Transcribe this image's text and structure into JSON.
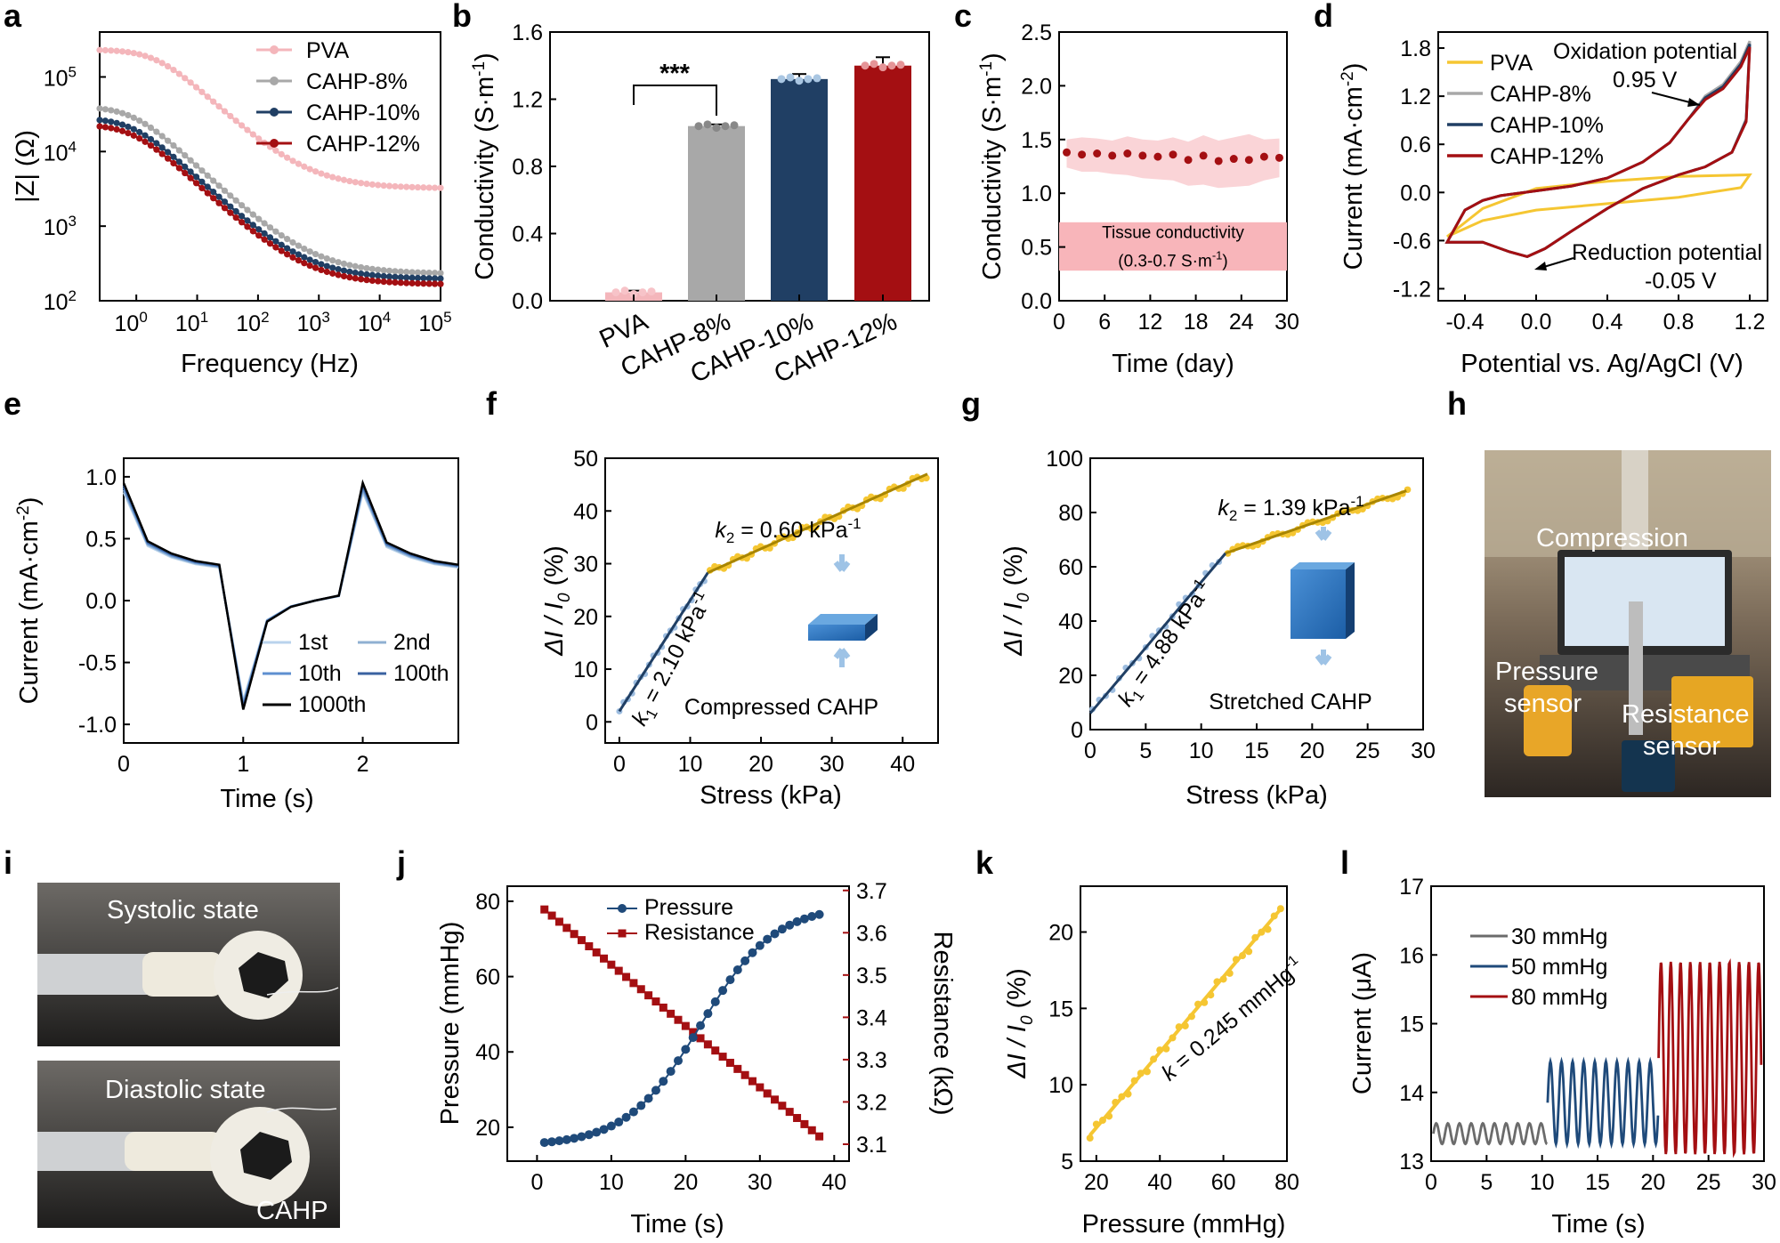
{
  "panels": {
    "a": "a",
    "b": "b",
    "c": "c",
    "d": "d",
    "e": "e",
    "f": "f",
    "g": "g",
    "h": "h",
    "i": "i",
    "j": "j",
    "k": "k",
    "l": "l"
  },
  "colors": {
    "pva": "#f4b6bb",
    "c8": "#a8a8a8",
    "c10": "#203f64",
    "c12": "#a40f12",
    "gold": "#f5c632",
    "goldText": "#a88500",
    "blueLine": "#203f64"
  },
  "chart_data": [
    {
      "id": "a",
      "type": "line",
      "title": "",
      "xlabel": "Frequency (Hz)",
      "ylabel": "|Z| (Ω)",
      "xscale": "log",
      "yscale": "log",
      "xlim": [
        0.25,
        100000
      ],
      "ylim": [
        100,
        400000
      ],
      "xticks": [
        {
          "v": 1,
          "l": "10",
          "e": "0"
        },
        {
          "v": 10,
          "l": "10",
          "e": "1"
        },
        {
          "v": 100,
          "l": "10",
          "e": "2"
        },
        {
          "v": 1000,
          "l": "10",
          "e": "3"
        },
        {
          "v": 10000,
          "l": "10",
          "e": "4"
        },
        {
          "v": 100000,
          "l": "10",
          "e": "5"
        }
      ],
      "yticks": [
        {
          "v": 100,
          "l": "10",
          "e": "2"
        },
        {
          "v": 1000,
          "l": "10",
          "e": "3"
        },
        {
          "v": 10000,
          "l": "10",
          "e": "4"
        },
        {
          "v": 100000,
          "l": "10",
          "e": "5"
        }
      ],
      "legend": [
        "PVA",
        "CAHP-8%",
        "CAHP-10%",
        "CAHP-12%"
      ],
      "series": [
        {
          "name": "PVA",
          "z0": 230000,
          "zinf": 3200,
          "fc": 2.2
        },
        {
          "name": "CAHP-8%",
          "z0": 40000,
          "zinf": 230,
          "fc": 0.9
        },
        {
          "name": "CAHP-10%",
          "z0": 28000,
          "zinf": 195,
          "fc": 0.9
        },
        {
          "name": "CAHP-12%",
          "z0": 23000,
          "zinf": 165,
          "fc": 0.9
        }
      ]
    },
    {
      "id": "b",
      "type": "bar",
      "title": "",
      "ylabel": "Conductivity (S·m",
      "ylabel_sup": "-1",
      "ylabel_end": ")",
      "categories": [
        "PVA",
        "CAHP-8%",
        "CAHP-10%",
        "CAHP-12%"
      ],
      "values": [
        0.05,
        1.04,
        1.32,
        1.4
      ],
      "errors": [
        0.01,
        0.01,
        0.03,
        0.05
      ],
      "ylim": [
        0,
        1.6
      ],
      "yticks": [
        "0.0",
        "0.4",
        "0.8",
        "1.2",
        "1.6"
      ],
      "annotation": "***"
    },
    {
      "id": "c",
      "type": "scatter",
      "title": "",
      "xlabel": "Time (day)",
      "ylabel": "Conductivity (S·m",
      "ylabel_sup": "-1",
      "ylabel_end": ")",
      "x": [
        1,
        3,
        5,
        7,
        9,
        11,
        13,
        15,
        17,
        19,
        21,
        23,
        25,
        27,
        29
      ],
      "y": [
        1.38,
        1.36,
        1.37,
        1.35,
        1.37,
        1.35,
        1.34,
        1.36,
        1.31,
        1.35,
        1.3,
        1.32,
        1.31,
        1.34,
        1.33
      ],
      "band_upper": [
        1.5,
        1.52,
        1.51,
        1.49,
        1.53,
        1.5,
        1.49,
        1.52,
        1.48,
        1.54,
        1.49,
        1.52,
        1.55,
        1.5,
        1.51
      ],
      "band_lower": [
        1.24,
        1.2,
        1.2,
        1.18,
        1.17,
        1.14,
        1.13,
        1.12,
        1.07,
        1.08,
        1.05,
        1.06,
        1.07,
        1.12,
        1.15
      ],
      "xlim": [
        0,
        30
      ],
      "ylim": [
        0,
        2.5
      ],
      "xticks": [
        "0",
        "6",
        "12",
        "18",
        "24",
        "30"
      ],
      "yticks": [
        "0.0",
        "0.5",
        "1.0",
        "1.5",
        "2.0",
        "2.5"
      ],
      "tissue_band": [
        0.28,
        0.73
      ],
      "tissue_label": "Tissue conductivity",
      "tissue_range_pre": "(0.3-0.7 S·m",
      "tissue_range_sup": "-1",
      "tissue_range_end": ")"
    },
    {
      "id": "d",
      "type": "line",
      "title": "",
      "xlabel": "Potential vs. Ag/AgCl (V)",
      "ylabel": "Current (mA·cm",
      "ylabel_sup": "-2",
      "ylabel_end": ")",
      "xlim": [
        -0.55,
        1.3
      ],
      "ylim": [
        -1.35,
        2.0
      ],
      "xticks": [
        "-0.4",
        "0.0",
        "0.4",
        "0.8",
        "1.2"
      ],
      "yticks": [
        "-1.2",
        "-0.6",
        "0.0",
        "0.6",
        "1.2",
        "1.8"
      ],
      "legend": [
        "PVA",
        "CAHP-8%",
        "CAHP-10%",
        "CAHP-12%"
      ],
      "ann_ox": "Oxidation potential",
      "ann_ox_v": "0.95 V",
      "ann_red": "Reduction potential",
      "ann_red_v": "-0.05 V"
    },
    {
      "id": "e",
      "type": "line",
      "title": "",
      "xlabel": "Time (s)",
      "ylabel": "Current (mA·cm",
      "ylabel_sup": "-2",
      "ylabel_end": ")",
      "xlim": [
        0,
        2.8
      ],
      "ylim": [
        -1.15,
        1.15
      ],
      "xticks": [
        "0",
        "1",
        "2"
      ],
      "yticks": [
        "-1.0",
        "-0.5",
        "0.0",
        "0.5",
        "1.0"
      ],
      "t": [
        0,
        0.2,
        0.4,
        0.6,
        0.8,
        1.0,
        1.2,
        1.4,
        1.6,
        1.8,
        2.0,
        2.2,
        2.4,
        2.6,
        2.8
      ],
      "i": [
        0.95,
        0.48,
        0.38,
        0.32,
        0.29,
        -0.88,
        -0.17,
        -0.05,
        0.0,
        0.04,
        0.95,
        0.47,
        0.38,
        0.32,
        0.29
      ],
      "legend": [
        "1st",
        "2nd",
        "10th",
        "100th",
        "1000th"
      ]
    },
    {
      "id": "f",
      "type": "scatter",
      "title": "",
      "xlabel": "Stress (kPa)",
      "ylabel": "ΔI / I",
      "ylabel_sub": "0",
      "ylabel_end": " (%)",
      "xlim": [
        -2,
        45
      ],
      "ylim": [
        -4,
        50
      ],
      "xticks": [
        "0",
        "10",
        "20",
        "30",
        "40"
      ],
      "yticks": [
        "0",
        "10",
        "20",
        "30",
        "40",
        "50"
      ],
      "k1": "2.10",
      "k2": "0.60",
      "k_unit": "kPa",
      "k_sup": "-1",
      "fit1": [
        [
          0,
          2.0
        ],
        [
          12.5,
          28.3
        ]
      ],
      "fit2": [
        [
          12.5,
          28.3
        ],
        [
          43.5,
          47.0
        ]
      ],
      "inset": "Compressed CAHP"
    },
    {
      "id": "g",
      "type": "scatter",
      "title": "",
      "xlabel": "Stress (kPa)",
      "ylabel": "ΔI / I",
      "ylabel_sub": "0",
      "ylabel_end": " (%)",
      "xlim": [
        0,
        30
      ],
      "ylim": [
        0,
        100
      ],
      "xticks": [
        "0",
        "5",
        "10",
        "15",
        "20",
        "25",
        "30"
      ],
      "yticks": [
        "0",
        "20",
        "40",
        "60",
        "80",
        "100"
      ],
      "k1": "4.88",
      "k2": "1.39",
      "k_unit": "kPa",
      "k_sup": "-1",
      "fit1": [
        [
          0,
          6
        ],
        [
          12.2,
          65
        ]
      ],
      "fit2": [
        [
          12.2,
          65
        ],
        [
          28.5,
          88
        ]
      ],
      "inset": "Stretched CAHP"
    },
    {
      "id": "j",
      "type": "line",
      "title": "",
      "xlabel": "Time (s)",
      "ylabel": "Pressure (mmHg)",
      "ylabel2": "Resistance (kΩ)",
      "xlim": [
        -4,
        42
      ],
      "ylim": [
        11,
        84
      ],
      "y2lim": [
        3.06,
        3.71
      ],
      "xticks": [
        "0",
        "10",
        "20",
        "30",
        "40"
      ],
      "yticks": [
        "20",
        "40",
        "60",
        "80"
      ],
      "y2ticks": [
        "3.1",
        "3.2",
        "3.3",
        "3.4",
        "3.5",
        "3.6",
        "3.7"
      ],
      "legend": [
        "Pressure",
        "Resistance"
      ]
    },
    {
      "id": "k",
      "type": "scatter",
      "title": "",
      "xlabel": "Pressure (mmHg)",
      "ylabel": "ΔI / I",
      "ylabel_sub": "0",
      "ylabel_end": " (%)",
      "xlim": [
        15,
        80
      ],
      "ylim": [
        5,
        23
      ],
      "xticks": [
        "20",
        "40",
        "60",
        "80"
      ],
      "yticks": [
        "5",
        "10",
        "15",
        "20"
      ],
      "fit": [
        [
          18,
          6.7
        ],
        [
          78,
          21.5
        ]
      ],
      "k": "0.245",
      "k_unit": "mmHg",
      "k_sup": "-1"
    },
    {
      "id": "l",
      "type": "line",
      "title": "",
      "xlabel": "Time (s)",
      "ylabel": "Current (μA)",
      "xlim": [
        0,
        30
      ],
      "ylim": [
        13,
        17
      ],
      "xticks": [
        "0",
        "5",
        "10",
        "15",
        "20",
        "25",
        "30"
      ],
      "yticks": [
        "13",
        "14",
        "15",
        "16",
        "17"
      ],
      "legend": [
        "30 mmHg",
        "50 mmHg",
        "80 mmHg"
      ]
    }
  ],
  "photos": {
    "h": {
      "compression": "Compression",
      "pressure": "Pressure",
      "sensor1": "sensor",
      "resistance": "Resistance",
      "sensor2": "sensor"
    },
    "i": {
      "systolic": "Systolic state",
      "diastolic": "Diastolic state",
      "cahp": "CAHP"
    }
  }
}
